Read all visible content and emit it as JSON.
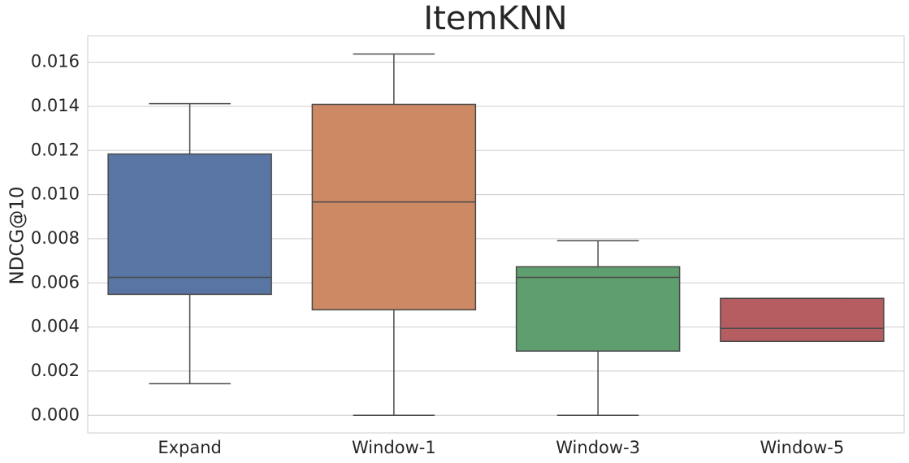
{
  "chart_data": {
    "type": "box",
    "title": "ItemKNN",
    "y_label": "NDCG@10",
    "categories": [
      "Expand",
      "Window-1",
      "Window-3",
      "Window-5"
    ],
    "colors": [
      "#5875a4",
      "#cc8963",
      "#5f9e6e",
      "#b55d60"
    ],
    "whisker_low": [
      0.00143,
      0,
      0,
      0.00335
    ],
    "q1": [
      0.00548,
      0.00478,
      0.00291,
      0.00335
    ],
    "median": [
      0.00625,
      0.00967,
      0.00625,
      0.00394
    ],
    "q3": [
      0.01184,
      0.01409,
      0.00673,
      0.0053
    ],
    "whisker_high": [
      0.01412,
      0.01637,
      0.00791,
      0.0053
    ],
    "ylim": [
      -0.0008,
      0.0172
    ],
    "yticks": [
      {
        "value": 0,
        "label": "0.000"
      },
      {
        "value": 0.002,
        "label": "0.002"
      },
      {
        "value": 0.004,
        "label": "0.004"
      },
      {
        "value": 0.006,
        "label": "0.006"
      },
      {
        "value": 0.008,
        "label": "0.008"
      },
      {
        "value": 0.01,
        "label": "0.010"
      },
      {
        "value": 0.012,
        "label": "0.012"
      },
      {
        "value": 0.014,
        "label": "0.014"
      },
      {
        "value": 0.016,
        "label": "0.016"
      }
    ],
    "grid": true
  }
}
